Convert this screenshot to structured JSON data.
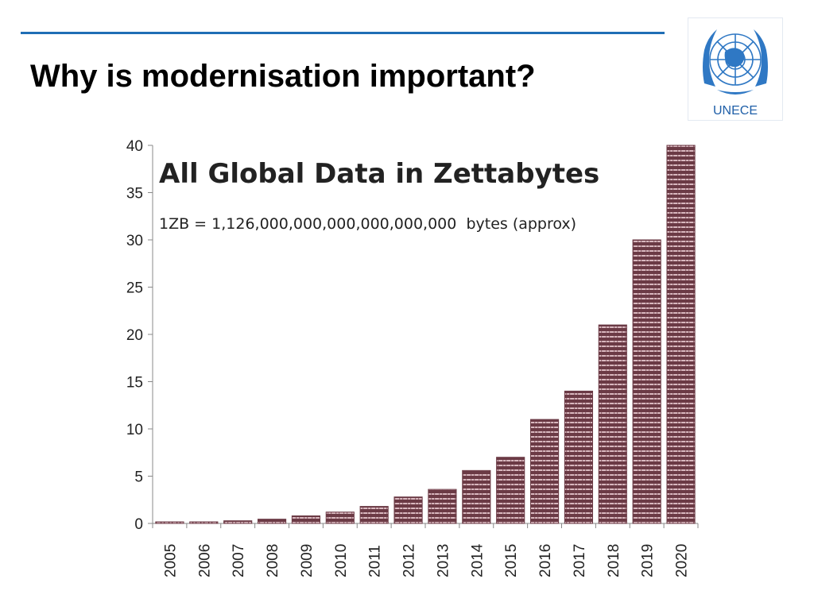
{
  "slide": {
    "title": "Why is modernisation important?",
    "logo_text": "UNECE",
    "rule_color": "#1f6eb5"
  },
  "chart_data": {
    "type": "bar",
    "title": "All Global Data in Zettabytes",
    "subtitle": "1ZB = 1,126,000,000,000,000,000,000  bytes (approx)",
    "xlabel": "",
    "ylabel": "",
    "categories": [
      "2005",
      "2006",
      "2007",
      "2008",
      "2009",
      "2010",
      "2011",
      "2012",
      "2013",
      "2014",
      "2015",
      "2016",
      "2017",
      "2018",
      "2019",
      "2020"
    ],
    "values": [
      0.1,
      0.16,
      0.28,
      0.45,
      0.8,
      1.2,
      1.8,
      2.8,
      3.6,
      5.6,
      7,
      11,
      14,
      21,
      30,
      40
    ],
    "ylim": [
      0,
      40
    ],
    "yticks": [
      0,
      5,
      10,
      15,
      20,
      25,
      30,
      35,
      40
    ],
    "grid": false,
    "legend": "none",
    "bar_color": "#6b3a45"
  }
}
